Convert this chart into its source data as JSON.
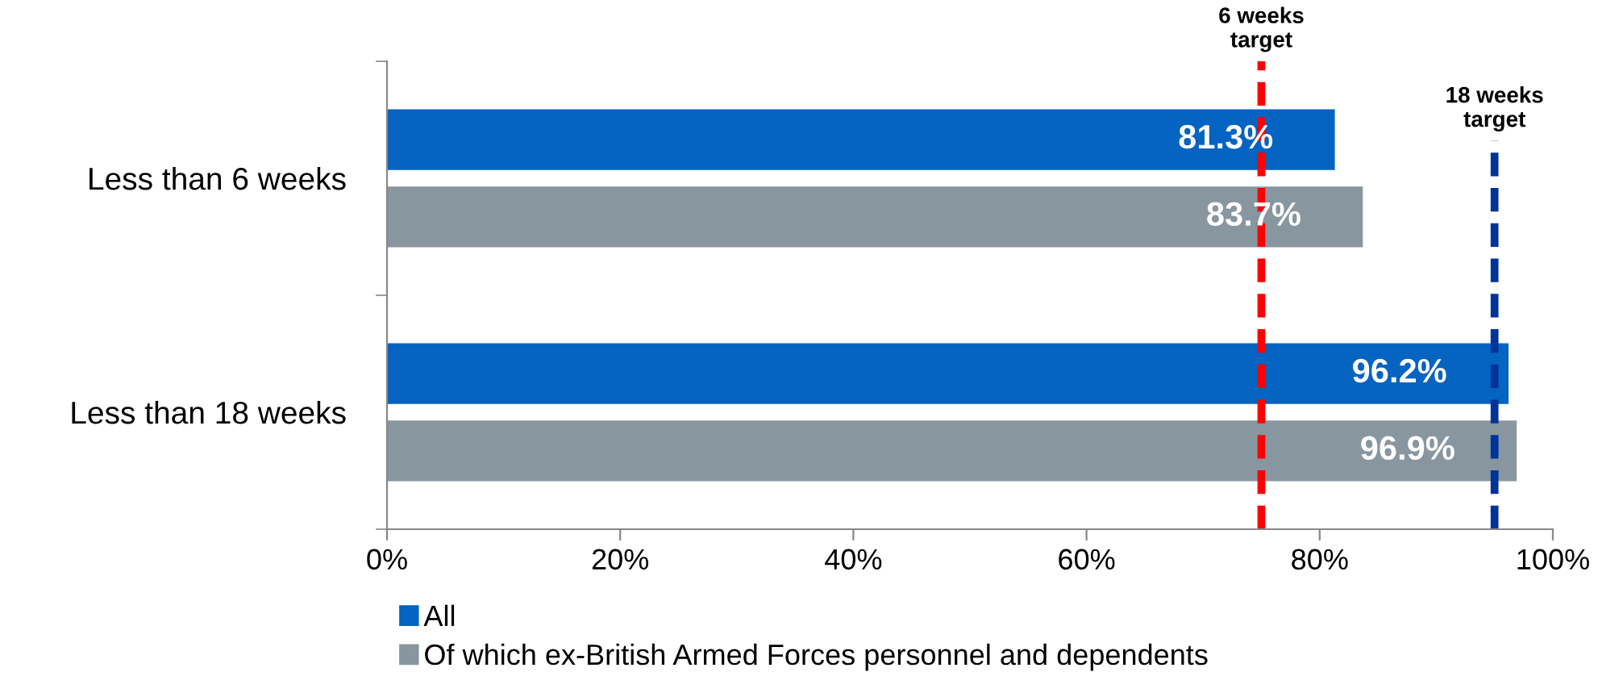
{
  "chart_data": {
    "type": "bar",
    "orientation": "horizontal",
    "categories": [
      "Less than 6 weeks",
      "Less than 18 weeks"
    ],
    "series": [
      {
        "name": "All",
        "color": "#0563c1",
        "values": [
          81.3,
          96.2
        ],
        "value_labels": [
          "81.3%",
          "96.2%"
        ]
      },
      {
        "name": "Of which ex-British Armed Forces personnel and dependents",
        "color": "#8896a0",
        "values": [
          83.7,
          96.9
        ],
        "value_labels": [
          "83.7%",
          "96.9%"
        ]
      }
    ],
    "xlim": [
      0,
      100
    ],
    "xticks": [
      {
        "value": 0,
        "label": "0%"
      },
      {
        "value": 20,
        "label": "20%"
      },
      {
        "value": 40,
        "label": "40%"
      },
      {
        "value": 60,
        "label": "60%"
      },
      {
        "value": 80,
        "label": "80%"
      },
      {
        "value": 100,
        "label": "100%"
      }
    ],
    "ref_lines": [
      {
        "axis": "x",
        "value": 75,
        "label": "6 weeks\ntarget",
        "color": "#ff0000",
        "line_style": "dashed"
      },
      {
        "axis": "x",
        "value": 95,
        "label": "18 weeks\ntarget",
        "color": "#003399",
        "line_style": "dashed"
      }
    ],
    "legend": "bottom",
    "grid": false
  }
}
